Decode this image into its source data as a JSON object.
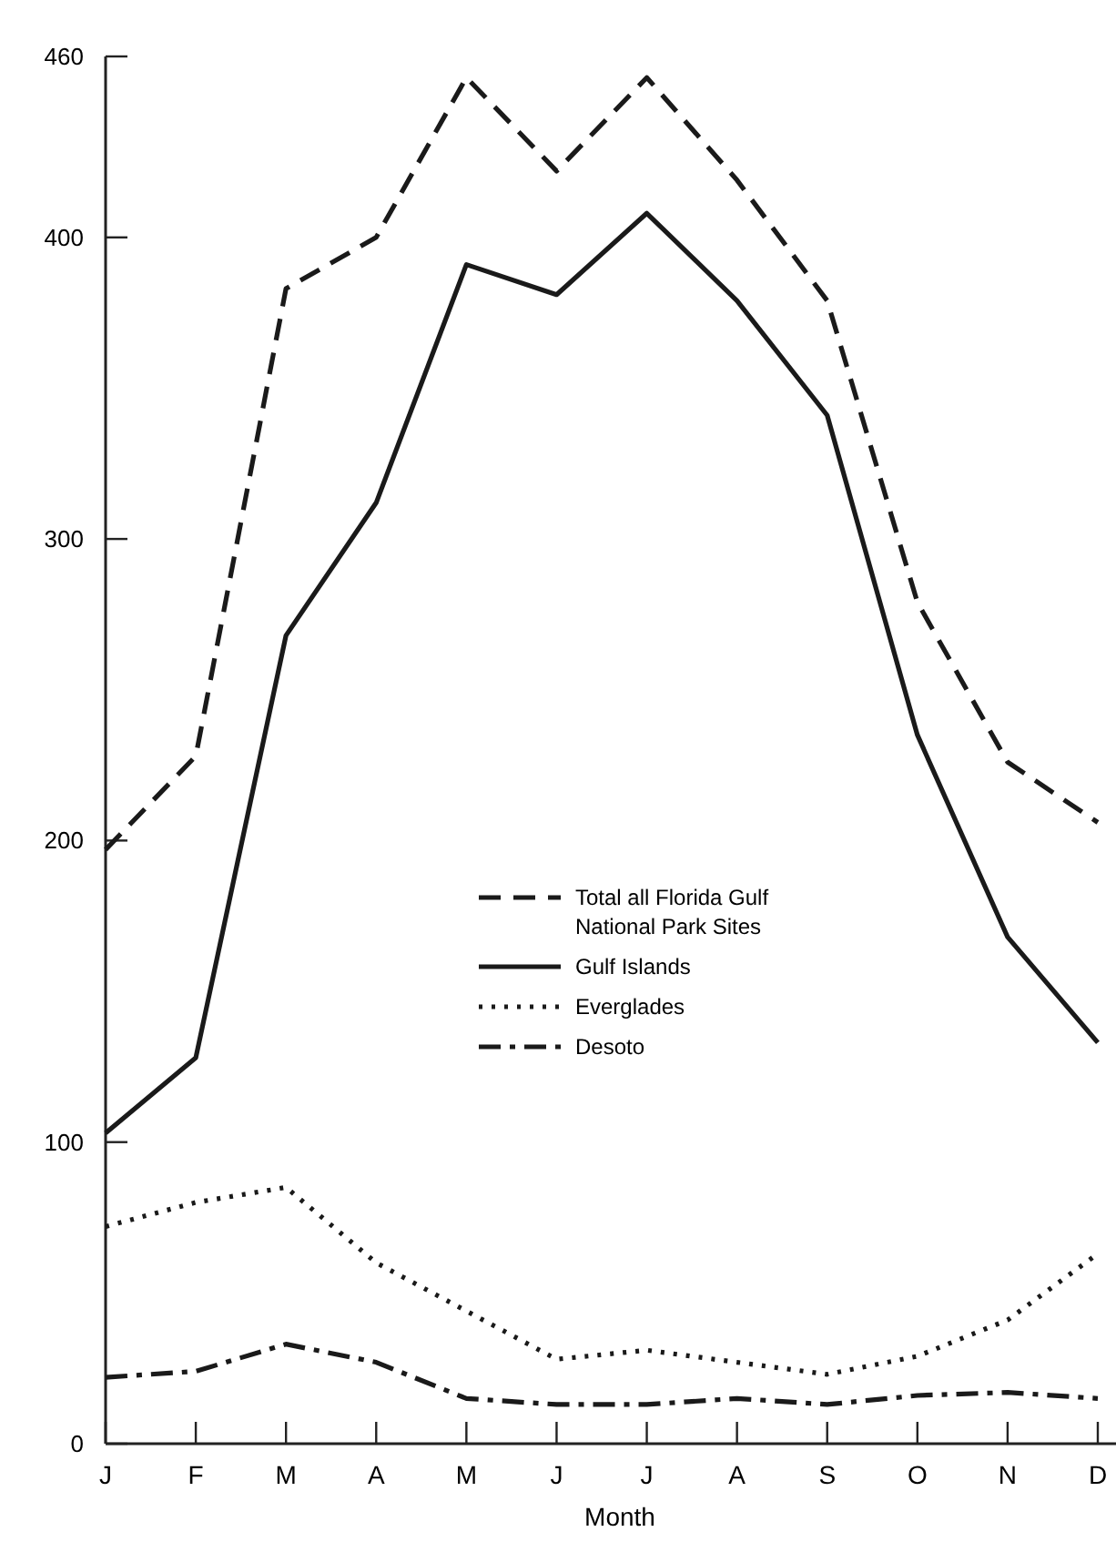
{
  "chart_data": {
    "type": "line",
    "xlabel": "Month",
    "categories": [
      "J",
      "F",
      "M",
      "A",
      "M",
      "J",
      "J",
      "A",
      "S",
      "O",
      "N",
      "D"
    ],
    "ylim": [
      0,
      460
    ],
    "yticks": [
      0,
      100,
      200,
      300,
      400,
      460
    ],
    "grid": false,
    "legend": "center",
    "series": [
      {
        "name": "Total all Florida Gulf National Park Sites",
        "color": "#1a1a1a",
        "line_style": "dashed",
        "values": [
          197,
          228,
          383,
          400,
          453,
          422,
          453,
          419,
          379,
          279,
          226,
          206
        ]
      },
      {
        "name": "Gulf Islands",
        "color": "#1a1a1a",
        "line_style": "solid",
        "values": [
          103,
          128,
          268,
          312,
          391,
          381,
          408,
          379,
          341,
          235,
          168,
          133
        ]
      },
      {
        "name": "Everglades",
        "color": "#1a1a1a",
        "line_style": "dotted",
        "values": [
          72,
          80,
          85,
          60,
          44,
          28,
          31,
          27,
          23,
          29,
          41,
          63
        ]
      },
      {
        "name": "Desoto",
        "color": "#1a1a1a",
        "line_style": "dashdot",
        "values": [
          22,
          24,
          33,
          27,
          15,
          13,
          13,
          15,
          13,
          16,
          17,
          15
        ]
      }
    ]
  }
}
